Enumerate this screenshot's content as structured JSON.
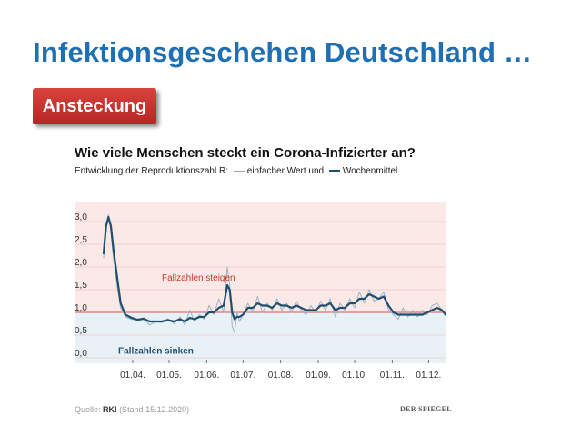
{
  "slide": {
    "title": "Infektionsgeschehen Deutschland …",
    "badge": "Ansteckung"
  },
  "chart": {
    "title": "Wie viele Menschen steckt ein Corona-Infizierter an?",
    "subtitle_start": "Entwicklung der Reproduktionszahl R:",
    "subtitle_mid": "einfacher Wert und",
    "subtitle_end": "Wochenmittel",
    "source_prefix": "Quelle:",
    "source_name": "RKI",
    "source_date": "(Stand 15.12.2020)",
    "publisher": "DER SPIEGEL",
    "colors": {
      "upper_band": "#fbe9e7",
      "lower_band": "#e8f1f5",
      "threshold_line": "#d9534f",
      "weekly_line": "#1f4f6e",
      "daily_line": "#9fb3c2",
      "grid": "#f0c8c4",
      "upper_text": "#c0392b",
      "lower_text": "#1f4f6e"
    }
  },
  "chart_data": {
    "type": "line",
    "title": "Wie viele Menschen steckt ein Corona-Infizierter an?",
    "x_unit": "date",
    "xlim": [
      "2020-03-08",
      "2020-12-15"
    ],
    "ylim": [
      0,
      3.0
    ],
    "x_ticks": [
      "01.04.",
      "01.05.",
      "01.06.",
      "01.07.",
      "01.08.",
      "01.09.",
      "01.10.",
      "01.11.",
      "01.12."
    ],
    "x_tick_dates": [
      "2020-04-01",
      "2020-05-01",
      "2020-06-01",
      "2020-07-01",
      "2020-08-01",
      "2020-09-01",
      "2020-10-01",
      "2020-11-01",
      "2020-12-01"
    ],
    "y_ticks": [
      0,
      0.5,
      1.0,
      1.5,
      2.0,
      2.5,
      3.0
    ],
    "y_tick_labels": [
      "0,0",
      "0,5",
      "1,0",
      "1,5",
      "2,0",
      "2,5",
      "3,0"
    ],
    "threshold": 1.0,
    "annotations": [
      "Fallzahlen steigen",
      "Fallzahlen sinken"
    ],
    "grid": true,
    "series": [
      {
        "name": "einfacher Wert",
        "x": [
          "2020-03-08",
          "2020-03-10",
          "2020-03-12",
          "2020-03-14",
          "2020-03-16",
          "2020-03-19",
          "2020-03-22",
          "2020-03-26",
          "2020-03-31",
          "2020-04-05",
          "2020-04-10",
          "2020-04-15",
          "2020-04-20",
          "2020-04-25",
          "2020-04-30",
          "2020-05-05",
          "2020-05-10",
          "2020-05-14",
          "2020-05-18",
          "2020-05-22",
          "2020-05-26",
          "2020-05-30",
          "2020-06-03",
          "2020-06-07",
          "2020-06-11",
          "2020-06-15",
          "2020-06-18",
          "2020-06-20",
          "2020-06-22",
          "2020-06-24",
          "2020-06-26",
          "2020-06-28",
          "2020-07-01",
          "2020-07-05",
          "2020-07-09",
          "2020-07-13",
          "2020-07-17",
          "2020-07-21",
          "2020-07-25",
          "2020-07-29",
          "2020-08-02",
          "2020-08-06",
          "2020-08-10",
          "2020-08-14",
          "2020-08-18",
          "2020-08-22",
          "2020-08-26",
          "2020-08-30",
          "2020-09-03",
          "2020-09-07",
          "2020-09-11",
          "2020-09-15",
          "2020-09-19",
          "2020-09-23",
          "2020-09-27",
          "2020-10-01",
          "2020-10-05",
          "2020-10-09",
          "2020-10-13",
          "2020-10-17",
          "2020-10-21",
          "2020-10-25",
          "2020-10-29",
          "2020-11-02",
          "2020-11-06",
          "2020-11-10",
          "2020-11-14",
          "2020-11-18",
          "2020-11-22",
          "2020-11-26",
          "2020-11-30",
          "2020-12-04",
          "2020-12-08",
          "2020-12-12",
          "2020-12-15"
        ],
        "values": [
          2.2,
          2.9,
          3.15,
          2.8,
          2.2,
          1.6,
          1.1,
          0.9,
          0.85,
          0.82,
          0.88,
          0.72,
          0.8,
          0.78,
          0.86,
          0.75,
          0.9,
          0.72,
          1.05,
          0.8,
          0.95,
          0.85,
          1.15,
          0.95,
          1.3,
          1.0,
          2.0,
          1.6,
          0.7,
          0.55,
          1.0,
          0.8,
          0.95,
          1.2,
          1.0,
          1.35,
          1.0,
          1.2,
          1.05,
          1.3,
          1.05,
          1.2,
          1.0,
          1.25,
          1.05,
          0.95,
          1.15,
          1.0,
          1.25,
          1.05,
          1.3,
          0.9,
          1.2,
          1.05,
          1.3,
          1.1,
          1.45,
          1.2,
          1.5,
          1.25,
          1.3,
          1.45,
          1.05,
          0.95,
          0.85,
          1.1,
          0.9,
          1.05,
          0.9,
          1.05,
          0.95,
          1.15,
          1.2,
          1.05,
          0.95
        ]
      },
      {
        "name": "Wochenmittel",
        "x": [
          "2020-03-08",
          "2020-03-10",
          "2020-03-12",
          "2020-03-14",
          "2020-03-16",
          "2020-03-19",
          "2020-03-22",
          "2020-03-26",
          "2020-03-31",
          "2020-04-05",
          "2020-04-10",
          "2020-04-15",
          "2020-04-20",
          "2020-04-25",
          "2020-04-30",
          "2020-05-05",
          "2020-05-10",
          "2020-05-14",
          "2020-05-18",
          "2020-05-22",
          "2020-05-26",
          "2020-05-30",
          "2020-06-03",
          "2020-06-07",
          "2020-06-11",
          "2020-06-15",
          "2020-06-18",
          "2020-06-20",
          "2020-06-22",
          "2020-06-24",
          "2020-06-26",
          "2020-06-28",
          "2020-07-01",
          "2020-07-05",
          "2020-07-09",
          "2020-07-13",
          "2020-07-17",
          "2020-07-21",
          "2020-07-25",
          "2020-07-29",
          "2020-08-02",
          "2020-08-06",
          "2020-08-10",
          "2020-08-14",
          "2020-08-18",
          "2020-08-22",
          "2020-08-26",
          "2020-08-30",
          "2020-09-03",
          "2020-09-07",
          "2020-09-11",
          "2020-09-15",
          "2020-09-19",
          "2020-09-23",
          "2020-09-27",
          "2020-10-01",
          "2020-10-05",
          "2020-10-09",
          "2020-10-13",
          "2020-10-17",
          "2020-10-21",
          "2020-10-25",
          "2020-10-29",
          "2020-11-02",
          "2020-11-06",
          "2020-11-10",
          "2020-11-14",
          "2020-11-18",
          "2020-11-22",
          "2020-11-26",
          "2020-11-30",
          "2020-12-04",
          "2020-12-08",
          "2020-12-12",
          "2020-12-15"
        ],
        "values": [
          2.3,
          2.9,
          3.1,
          2.9,
          2.4,
          1.8,
          1.2,
          0.95,
          0.88,
          0.84,
          0.86,
          0.8,
          0.8,
          0.8,
          0.83,
          0.8,
          0.85,
          0.8,
          0.88,
          0.85,
          0.9,
          0.9,
          1.0,
          1.0,
          1.1,
          1.15,
          1.6,
          1.5,
          1.0,
          0.85,
          0.9,
          0.9,
          0.95,
          1.1,
          1.1,
          1.2,
          1.15,
          1.15,
          1.1,
          1.2,
          1.15,
          1.15,
          1.1,
          1.15,
          1.1,
          1.05,
          1.05,
          1.05,
          1.15,
          1.15,
          1.2,
          1.05,
          1.1,
          1.1,
          1.2,
          1.2,
          1.3,
          1.3,
          1.4,
          1.35,
          1.3,
          1.35,
          1.15,
          1.0,
          0.95,
          0.95,
          0.95,
          0.95,
          0.95,
          0.95,
          1.0,
          1.05,
          1.1,
          1.05,
          0.95
        ]
      }
    ]
  }
}
